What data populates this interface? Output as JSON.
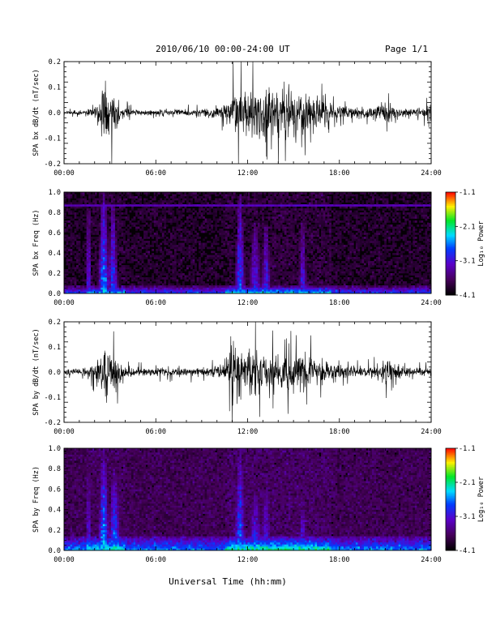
{
  "header": {
    "title": "2010/06/10  00:00-24:00 UT",
    "page": "Page 1/1"
  },
  "x_axis": {
    "label": "Universal Time (hh:mm)",
    "tick_labels": [
      "00:00",
      "06:00",
      "12:00",
      "18:00",
      "24:00"
    ],
    "range_hours": [
      0,
      24
    ]
  },
  "colorbar": {
    "label": "Log₁₀ Power",
    "tick_labels": [
      "-1.1",
      "-2.1",
      "-3.1",
      "-4.1"
    ],
    "range": [
      -4.1,
      -1.1
    ]
  },
  "chart_data": [
    {
      "type": "line",
      "name": "bx-waveform",
      "ylabel": "SPA bx dB/dt (nT/sec)",
      "ylim": [
        -0.2,
        0.2
      ],
      "ytick_labels": [
        "0.2",
        "0.1",
        "0.0",
        "-0.1",
        "-0.2"
      ],
      "envelope": {
        "x_hours": [
          0,
          1,
          1.7,
          2.0,
          2.4,
          2.7,
          3.0,
          3.4,
          3.7,
          4.2,
          5,
          6,
          7,
          8,
          9,
          10,
          10.5,
          11,
          11.5,
          12,
          12.5,
          13,
          13.5,
          14,
          14.5,
          15,
          15.5,
          16,
          16.5,
          17,
          18,
          19,
          20,
          21,
          22,
          23,
          23.7,
          24
        ],
        "amplitude": [
          0.012,
          0.015,
          0.03,
          0.05,
          0.16,
          0.2,
          0.2,
          0.15,
          0.06,
          0.03,
          0.02,
          0.02,
          0.025,
          0.025,
          0.03,
          0.04,
          0.07,
          0.15,
          0.2,
          0.2,
          0.19,
          0.2,
          0.16,
          0.18,
          0.2,
          0.16,
          0.2,
          0.2,
          0.12,
          0.08,
          0.05,
          0.04,
          0.04,
          0.07,
          0.04,
          0.03,
          0.04,
          0.1
        ]
      }
    },
    {
      "type": "heatmap",
      "name": "bx-spectrogram",
      "ylabel": "SPA bx Freq (Hz)",
      "ylim": [
        0,
        1.0
      ],
      "ytick_labels": [
        "1.0",
        "0.8",
        "0.6",
        "0.4",
        "0.2",
        "0.0"
      ],
      "zlim": [
        -4.1,
        -1.1
      ],
      "zlabel": "Log₁₀ Power",
      "background_log_power": -3.9,
      "low_freq_band_hz": 0.08,
      "hot_line_hz": 0.87,
      "events": [
        {
          "t_hours": 1.6,
          "width_hours": 0.15,
          "top_hz": 1.0,
          "log_power": -2.9
        },
        {
          "t_hours": 2.6,
          "width_hours": 0.35,
          "top_hz": 1.0,
          "log_power": -2.5
        },
        {
          "t_hours": 3.2,
          "width_hours": 0.3,
          "top_hz": 0.9,
          "log_power": -2.7
        },
        {
          "t_hours": 11.5,
          "width_hours": 0.3,
          "top_hz": 1.0,
          "log_power": -2.7
        },
        {
          "t_hours": 12.5,
          "width_hours": 0.4,
          "top_hz": 0.7,
          "log_power": -3.0
        },
        {
          "t_hours": 13.2,
          "width_hours": 0.3,
          "top_hz": 0.7,
          "log_power": -2.9
        },
        {
          "t_hours": 15.6,
          "width_hours": 0.25,
          "top_hz": 0.75,
          "log_power": -3.0
        }
      ]
    },
    {
      "type": "line",
      "name": "by-waveform",
      "ylabel": "SPA by dB/dt (nT/sec)",
      "ylim": [
        -0.2,
        0.2
      ],
      "ytick_labels": [
        "0.2",
        "0.1",
        "0.0",
        "-0.1",
        "-0.2"
      ],
      "envelope": {
        "x_hours": [
          0,
          1,
          1.7,
          2.0,
          2.4,
          2.7,
          3.0,
          3.4,
          3.7,
          4.2,
          5,
          6,
          7,
          8,
          9,
          10,
          10.5,
          11,
          11.5,
          12,
          12.5,
          13,
          13.5,
          14,
          14.5,
          15,
          15.5,
          16,
          16.5,
          17,
          18,
          19,
          20,
          21,
          22,
          23,
          23.7,
          24
        ],
        "amplitude": [
          0.02,
          0.025,
          0.04,
          0.06,
          0.15,
          0.2,
          0.2,
          0.18,
          0.07,
          0.04,
          0.03,
          0.03,
          0.03,
          0.03,
          0.03,
          0.04,
          0.08,
          0.2,
          0.2,
          0.2,
          0.18,
          0.15,
          0.12,
          0.15,
          0.14,
          0.12,
          0.14,
          0.13,
          0.1,
          0.08,
          0.05,
          0.04,
          0.04,
          0.1,
          0.04,
          0.03,
          0.03,
          0.03
        ]
      }
    },
    {
      "type": "heatmap",
      "name": "by-spectrogram",
      "ylabel": "SPA by Freq (Hz)",
      "ylim": [
        0,
        1.0
      ],
      "ytick_labels": [
        "1.0",
        "0.8",
        "0.6",
        "0.4",
        "0.2",
        "0.0"
      ],
      "zlim": [
        -4.1,
        -1.1
      ],
      "zlabel": "Log₁₀ Power",
      "background_log_power": -3.7,
      "low_freq_band_hz": 0.15,
      "events": [
        {
          "t_hours": 1.6,
          "width_hours": 0.15,
          "top_hz": 1.0,
          "log_power": -2.9
        },
        {
          "t_hours": 2.6,
          "width_hours": 0.35,
          "top_hz": 1.0,
          "log_power": -2.4
        },
        {
          "t_hours": 3.3,
          "width_hours": 0.4,
          "top_hz": 0.8,
          "log_power": -2.6
        },
        {
          "t_hours": 11.5,
          "width_hours": 0.35,
          "top_hz": 1.0,
          "log_power": -2.6
        },
        {
          "t_hours": 12.5,
          "width_hours": 0.45,
          "top_hz": 0.6,
          "log_power": -2.9
        },
        {
          "t_hours": 13.2,
          "width_hours": 0.35,
          "top_hz": 0.6,
          "log_power": -2.9
        },
        {
          "t_hours": 15.6,
          "width_hours": 0.3,
          "top_hz": 0.5,
          "log_power": -3.0
        }
      ]
    }
  ]
}
